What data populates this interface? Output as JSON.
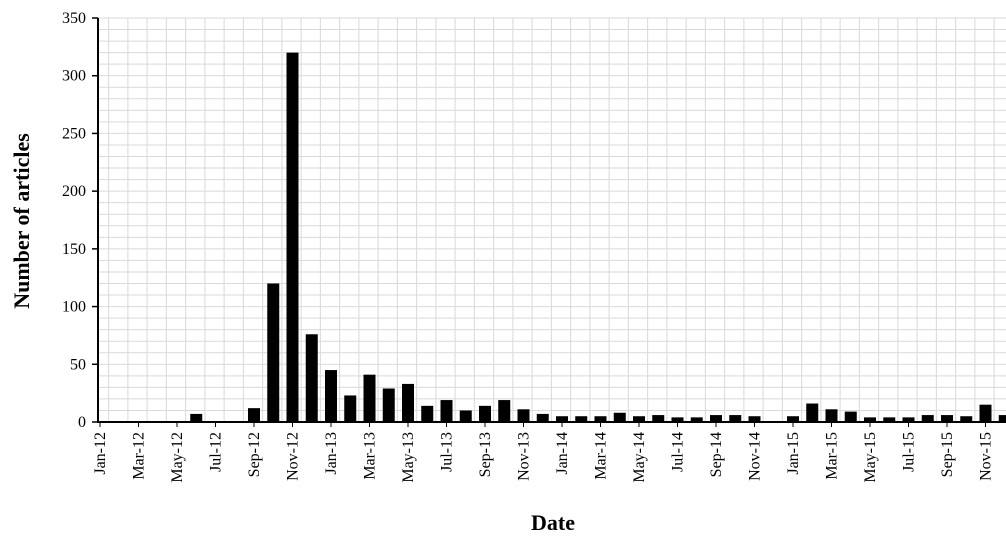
{
  "chart_data": {
    "type": "bar",
    "title": "",
    "xlabel": "Date",
    "ylabel": "Number of articles",
    "ylim": [
      0,
      350
    ],
    "yticks": [
      0,
      50,
      100,
      150,
      200,
      250,
      300,
      350
    ],
    "grid": true,
    "legend": "none",
    "bar_color": "#000000",
    "grid_color": "#d9d9d9",
    "x_tick_labels": [
      "Jan-12",
      "Mar-12",
      "May-12",
      "Jul-12",
      "Sep-12",
      "Nov-12",
      "Jan-13",
      "Mar-13",
      "May-13",
      "Jul-13",
      "Sep-13",
      "Nov-13",
      "Jan-14",
      "Mar-14",
      "May-14",
      "Jul-14",
      "Sep-14",
      "Nov-14",
      "Jan-15",
      "Mar-15",
      "May-15",
      "Jul-15",
      "Sep-15",
      "Nov-15"
    ],
    "categories": [
      "Jan-12",
      "Feb-12",
      "Mar-12",
      "Apr-12",
      "May-12",
      "Jun-12",
      "Jul-12",
      "Aug-12",
      "Sep-12",
      "Oct-12",
      "Nov-12",
      "Dec-12",
      "Jan-13",
      "Feb-13",
      "Mar-13",
      "Apr-13",
      "May-13",
      "Jun-13",
      "Jul-13",
      "Aug-13",
      "Sep-13",
      "Oct-13",
      "Nov-13",
      "Dec-13",
      "Jan-14",
      "Feb-14",
      "Mar-14",
      "Apr-14",
      "May-14",
      "Jun-14",
      "Jul-14",
      "Aug-14",
      "Sep-14",
      "Oct-14",
      "Nov-14",
      "Dec-14",
      "Jan-15",
      "Feb-15",
      "Mar-15",
      "Apr-15",
      "May-15",
      "Jun-15",
      "Jul-15",
      "Aug-15",
      "Sep-15",
      "Oct-15",
      "Nov-15",
      "Dec-15"
    ],
    "values": [
      0,
      0,
      0,
      0,
      0,
      7,
      0,
      0,
      12,
      120,
      320,
      76,
      45,
      23,
      41,
      29,
      33,
      14,
      19,
      10,
      14,
      19,
      11,
      7,
      5,
      5,
      5,
      8,
      5,
      6,
      4,
      4,
      6,
      6,
      5,
      0,
      5,
      16,
      11,
      9,
      4,
      4,
      4,
      6,
      6,
      5,
      15,
      6
    ]
  }
}
